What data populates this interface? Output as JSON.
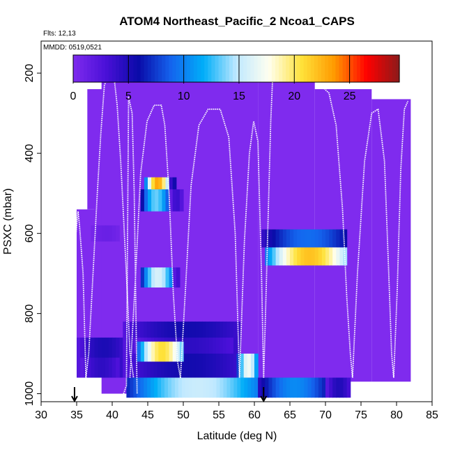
{
  "chart_data": {
    "type": "heatmap",
    "title": "ATOM4 Northeast_Pacific_2 Ncoa1_CAPS",
    "flights_label": "Flts: 12,13",
    "dates_label": "MMDD: 0519,0521",
    "xlabel": "Latitude (deg N)",
    "ylabel": "PSXC (mbar)",
    "xlim": [
      30,
      85
    ],
    "ylim": [
      1020,
      120
    ],
    "y_reversed": true,
    "xticks": [
      "30",
      "35",
      "40",
      "45",
      "50",
      "55",
      "60",
      "65",
      "70",
      "75",
      "80",
      "85"
    ],
    "yticks": [
      "200",
      "400",
      "600",
      "800",
      "1000"
    ],
    "colorbar": {
      "min": 0,
      "max": 29.5,
      "ticks": [
        "0",
        "5",
        "10",
        "15",
        "20",
        "25"
      ],
      "colors": [
        "#7f2bee",
        "#4a10d8",
        "#0a0aa8",
        "#1464ee",
        "#00aef8",
        "#bfe8ff",
        "#fffff0",
        "#ffe23a",
        "#ff9a00",
        "#ff0000",
        "#8b1a1a"
      ]
    },
    "background_color": "#7f2bee",
    "panel_regions": [
      {
        "lat": [
          35.0,
          42.0
        ],
        "p": [
          720,
          960
        ]
      },
      {
        "lat": [
          35.0,
          41.0
        ],
        "p": [
          540,
          960
        ]
      },
      {
        "lat": [
          36.5,
          41.5
        ],
        "p": [
          240,
          540
        ]
      },
      {
        "lat": [
          37.5,
          42.0
        ],
        "p": [
          320,
          720
        ]
      },
      {
        "lat": [
          38.5,
          60.5
        ],
        "p": [
          170,
          1000
        ]
      },
      {
        "lat": [
          60.5,
          68.5
        ],
        "p": [
          170,
          1000
        ]
      },
      {
        "lat": [
          68.5,
          76.5
        ],
        "p": [
          240,
          970
        ]
      },
      {
        "lat": [
          76.5,
          82.0
        ],
        "p": [
          265,
          970
        ]
      }
    ],
    "concentration_cells": [
      {
        "lat": [
          35.0,
          42.0
        ],
        "p": [
          860,
          960
        ],
        "value": 4.2
      },
      {
        "lat": [
          35.5,
          41.0
        ],
        "p": [
          910,
          960
        ],
        "value": 3.5
      },
      {
        "lat": [
          41.5,
          58.0
        ],
        "p": [
          820,
          960
        ],
        "value": 4.5
      },
      {
        "lat": [
          43.0,
          57.0
        ],
        "p": [
          860,
          900
        ],
        "value": 3.5
      },
      {
        "lat": [
          57.5,
          60.5
        ],
        "p": [
          900,
          960
        ],
        "value": 14.0
      },
      {
        "lat": [
          42.0,
          60.5
        ],
        "p": [
          960,
          1010
        ],
        "value": 12.5
      },
      {
        "lat": [
          60.5,
          70.0
        ],
        "p": [
          960,
          1010
        ],
        "value": 8.5
      },
      {
        "lat": [
          70.0,
          73.5
        ],
        "p": [
          960,
          1010
        ],
        "value": 4.0
      },
      {
        "lat": [
          44.0,
          48.0
        ],
        "p": [
          490,
          545
        ],
        "value": 11.0
      },
      {
        "lat": [
          48.0,
          50.0
        ],
        "p": [
          490,
          545
        ],
        "value": 3.0
      },
      {
        "lat": [
          44.5,
          48.0
        ],
        "p": [
          460,
          490
        ],
        "value": 19.0
      },
      {
        "lat": [
          48.0,
          49.0
        ],
        "p": [
          460,
          490
        ],
        "value": 7.0
      },
      {
        "lat": [
          44.0,
          48.5
        ],
        "p": [
          685,
          735
        ],
        "value": 13.0
      },
      {
        "lat": [
          48.5,
          49.5
        ],
        "p": [
          685,
          735
        ],
        "value": 4.0
      },
      {
        "lat": [
          43.5,
          50.0
        ],
        "p": [
          870,
          920
        ],
        "value": 17.0
      },
      {
        "lat": [
          61.0,
          73.0
        ],
        "p": [
          590,
          635
        ],
        "value": 7.5
      },
      {
        "lat": [
          61.5,
          73.0
        ],
        "p": [
          635,
          680
        ],
        "value": 18.0
      },
      {
        "lat": [
          37.0,
          41.0
        ],
        "p": [
          580,
          620
        ],
        "value": 1.0
      }
    ],
    "flight_tracks": [
      {
        "lat": [
          34.5,
          34.8,
          35.2,
          35.4,
          35.9,
          36.3,
          36.7,
          37.3,
          37.9,
          38.4,
          38.9,
          39.7,
          40.2,
          40.7,
          41.2,
          41.6,
          42.1,
          42.5,
          43.0
        ],
        "p": [
          1000,
          620,
          545,
          580,
          700,
          960,
          900,
          700,
          500,
          350,
          230,
          200,
          200,
          280,
          420,
          560,
          740,
          900,
          960
        ]
      },
      {
        "lat": [
          41.6,
          42.0,
          42.3,
          42.8,
          43.1,
          43.5
        ],
        "p": [
          1000,
          980,
          260,
          300,
          500,
          1000
        ]
      },
      {
        "lat": [
          42.5,
          43.3,
          44.0,
          44.9,
          45.9,
          46.9,
          47.4,
          48.0,
          48.6,
          49.2,
          49.6
        ],
        "p": [
          960,
          700,
          450,
          320,
          280,
          280,
          330,
          500,
          750,
          920,
          960
        ]
      },
      {
        "lat": [
          49.6,
          50.3,
          51.1,
          52.2,
          53.5,
          55.2,
          56.4,
          57.3,
          57.9
        ],
        "p": [
          960,
          740,
          480,
          330,
          290,
          290,
          360,
          600,
          960
        ]
      },
      {
        "lat": [
          57.9,
          58.6,
          59.3,
          59.9,
          60.5,
          61.0,
          61.3
        ],
        "p": [
          960,
          620,
          400,
          320,
          370,
          700,
          960
        ]
      },
      {
        "lat": [
          61.3,
          61.6,
          62.3,
          62.6,
          63.3,
          67.5,
          68.5,
          69.2,
          70.5,
          71.5,
          72.4,
          73.0,
          73.5,
          73.8
        ],
        "p": [
          960,
          780,
          320,
          200,
          195,
          195,
          205,
          228,
          250,
          330,
          540,
          760,
          900,
          960
        ]
      },
      {
        "lat": [
          73.8,
          74.5,
          75.5,
          76.5,
          77.4,
          78.3,
          78.9,
          79.3,
          79.6
        ],
        "p": [
          960,
          700,
          420,
          300,
          290,
          420,
          700,
          900,
          960
        ]
      },
      {
        "lat": [
          79.6,
          80.1,
          80.6,
          81.1,
          81.6
        ],
        "p": [
          960,
          740,
          440,
          290,
          270
        ]
      }
    ],
    "markers": [
      {
        "lat": 34.7,
        "label": "flight-start"
      },
      {
        "lat": 61.3,
        "label": "flight-switch"
      }
    ]
  }
}
